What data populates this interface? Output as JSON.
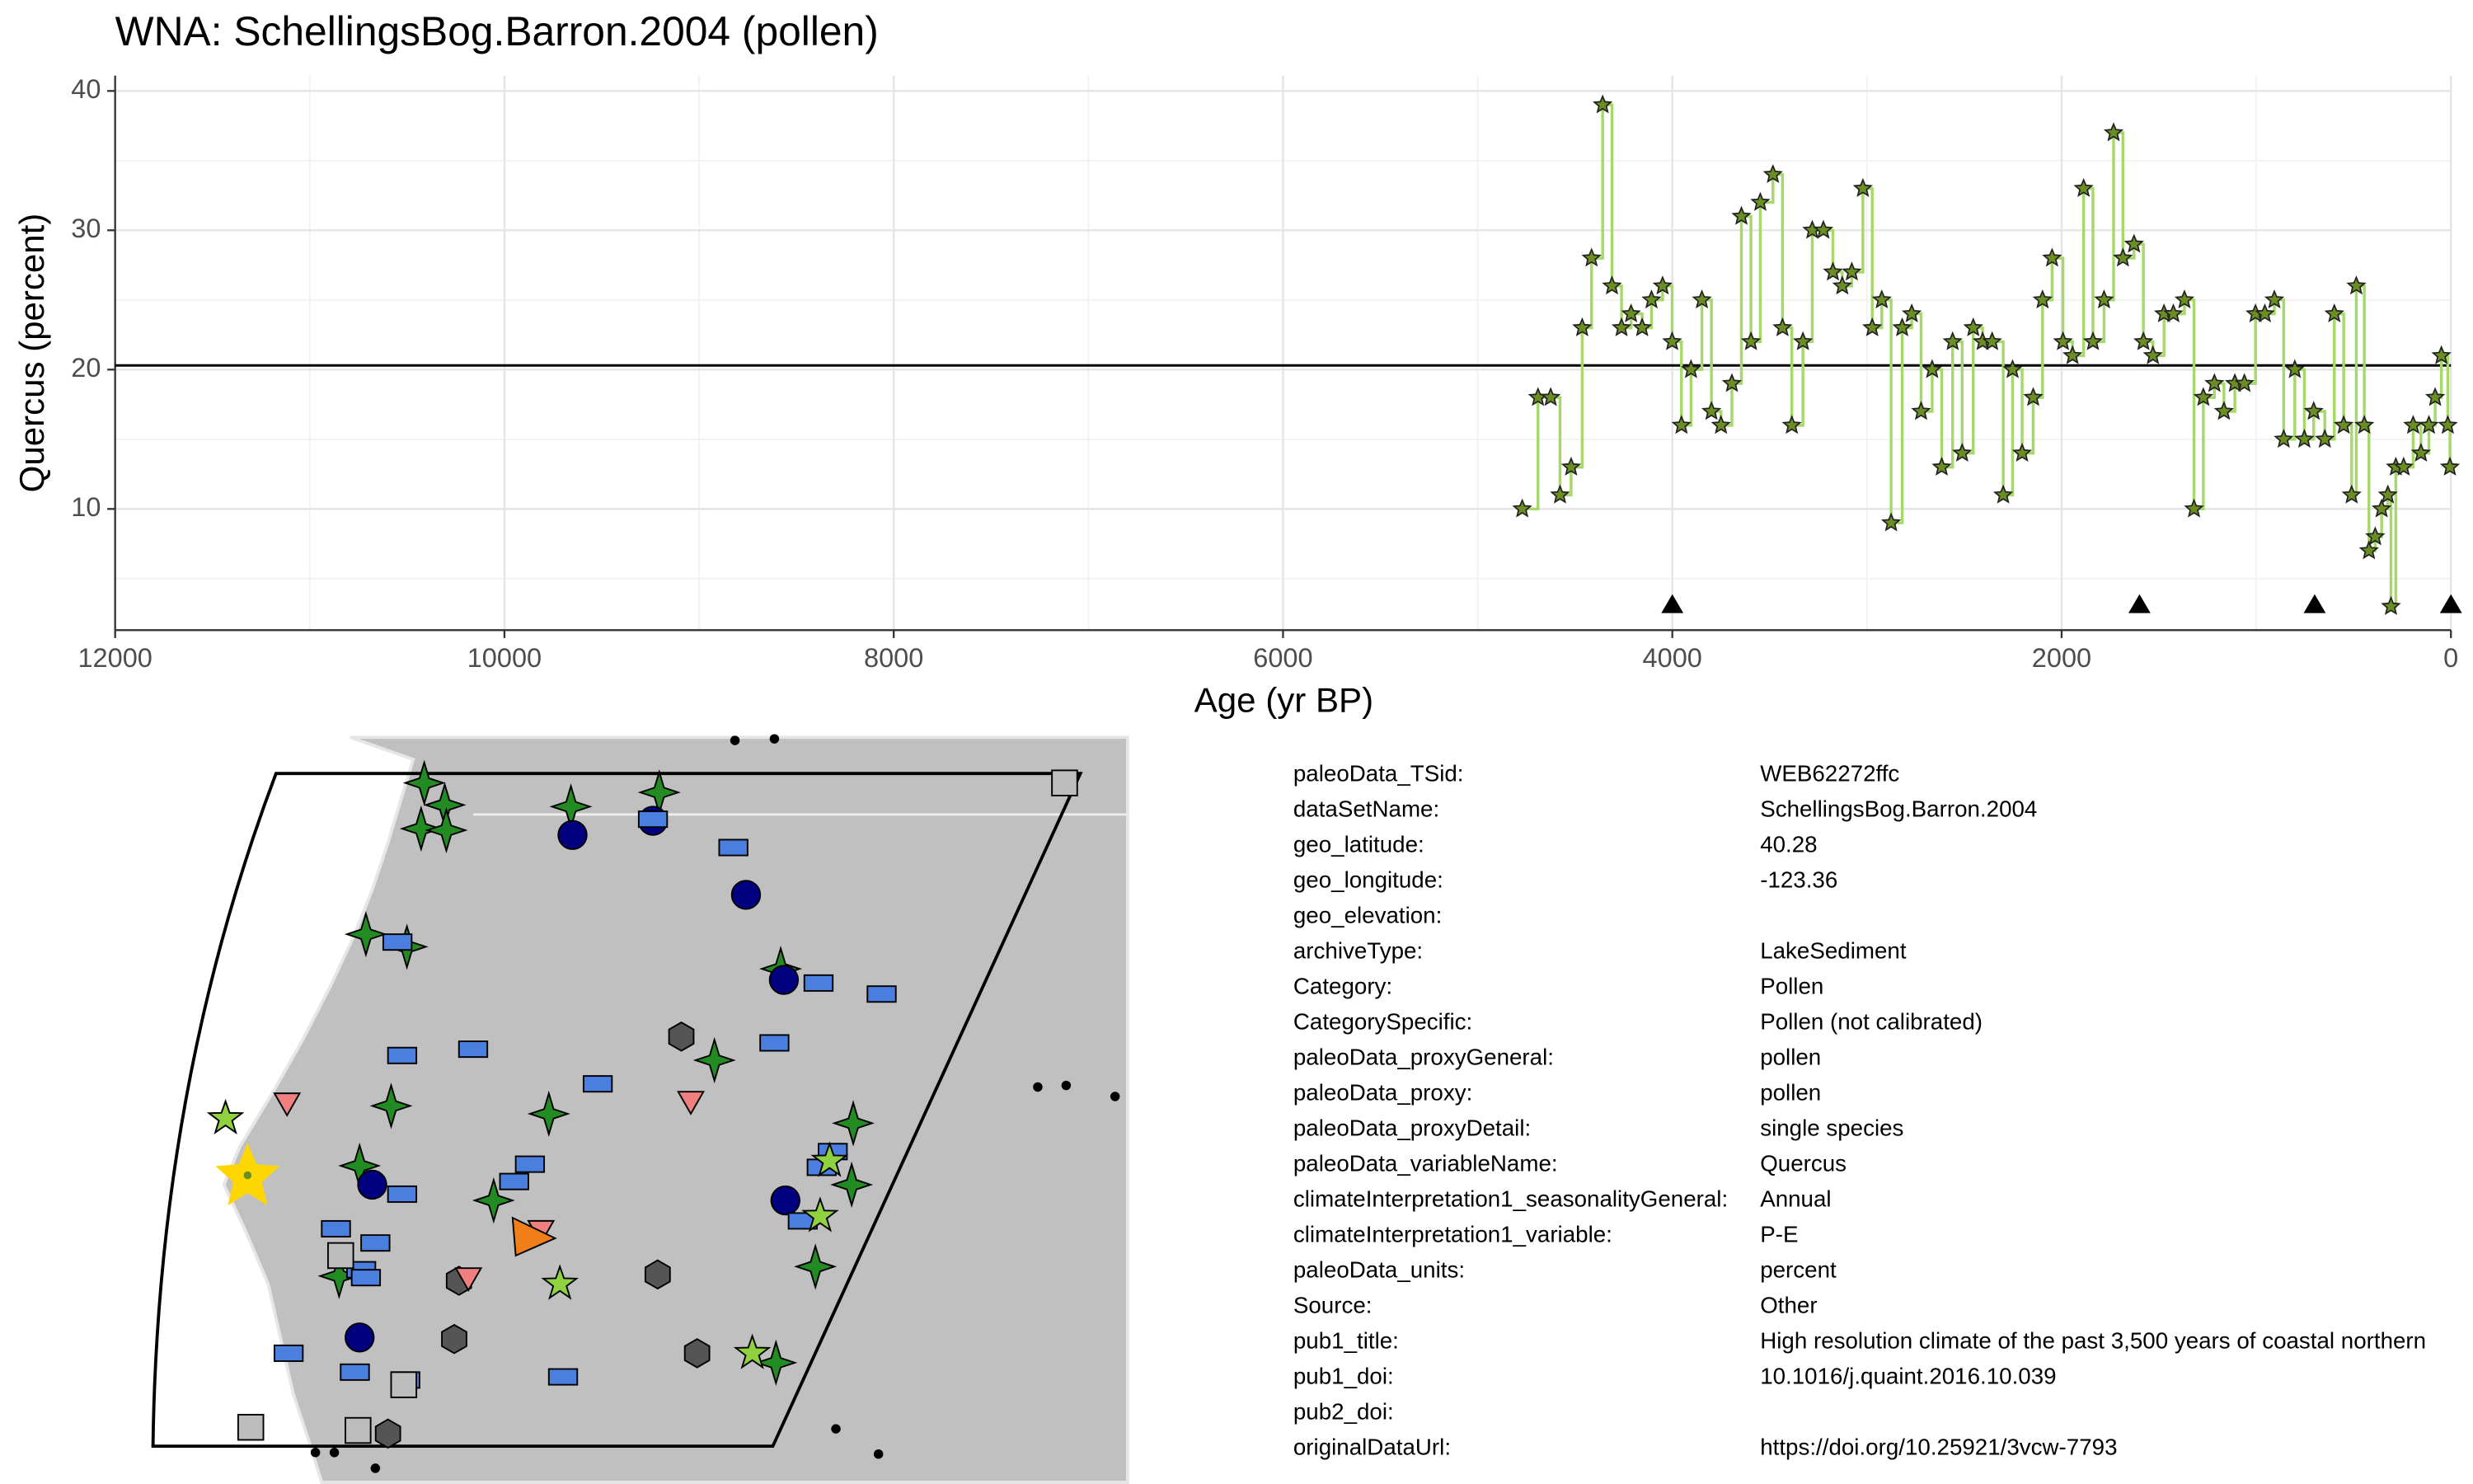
{
  "chart_data": {
    "type": "step",
    "title": "WNA: SchellingsBog.Barron.2004 (pollen)",
    "x_label": "Age (yr BP)",
    "y_label": "Quercus (percent)",
    "x": [
      4771,
      4690,
      4625,
      4577,
      4520,
      4463,
      4415,
      4358,
      4310,
      4261,
      4212,
      4155,
      4107,
      4050,
      4001,
      3953,
      3904,
      3848,
      3799,
      3750,
      3694,
      3645,
      3596,
      3548,
      3483,
      3434,
      3386,
      3329,
      3281,
      3224,
      3175,
      3127,
      3078,
      3021,
      2973,
      2924,
      2876,
      2819,
      2770,
      2722,
      2665,
      2616,
      2560,
      2511,
      2454,
      2406,
      2357,
      2300,
      2252,
      2203,
      2146,
      2098,
      2049,
      1993,
      1944,
      1887,
      1839,
      1782,
      1733,
      1685,
      1628,
      1580,
      1531,
      1474,
      1426,
      1369,
      1320,
      1272,
      1215,
      1166,
      1110,
      1061,
      1004,
      956,
      907,
      859,
      802,
      753,
      705,
      648,
      599,
      551,
      510,
      486,
      445,
      421,
      389,
      356,
      324,
      308,
      283,
      243,
      194,
      154,
      113,
      81,
      49,
      16,
      5
    ],
    "values": [
      10,
      18,
      18,
      11,
      13,
      23,
      28,
      39,
      26,
      23,
      24,
      23,
      25,
      26,
      22,
      16,
      20,
      25,
      17,
      16,
      19,
      31,
      22,
      32,
      34,
      23,
      16,
      22,
      30,
      30,
      27,
      26,
      27,
      33,
      23,
      25,
      9,
      23,
      24,
      17,
      20,
      13,
      22,
      14,
      23,
      22,
      22,
      11,
      20,
      14,
      18,
      25,
      28,
      22,
      21,
      33,
      22,
      25,
      37,
      28,
      29,
      22,
      21,
      24,
      24,
      25,
      10,
      18,
      19,
      17,
      19,
      19,
      24,
      24,
      25,
      15,
      20,
      15,
      17,
      15,
      24,
      16,
      11,
      26,
      16,
      7,
      8,
      10,
      11,
      3,
      13,
      13,
      16,
      14,
      16,
      18,
      21,
      16,
      13
    ],
    "line_color": "#a6d96a",
    "marker_color": "#6b8e23",
    "mean_line": 20.3,
    "chron_ages": [
      4000,
      1600,
      700,
      0
    ],
    "chron_level": 3.2,
    "xlim": [
      12000,
      0
    ],
    "xticks": [
      12000,
      10000,
      8000,
      6000,
      4000,
      2000,
      0
    ],
    "xminor": [
      11000,
      9000,
      7000,
      5000,
      3000,
      1000
    ],
    "ylim": [
      1.3,
      41.1
    ],
    "yticks": [
      10,
      20,
      30,
      40
    ],
    "yminor": [
      5,
      15,
      25,
      35
    ],
    "grid": true
  },
  "metadata": {
    "rows": [
      {
        "key": "paleoData_TSid:",
        "value": "WEB62272ffc"
      },
      {
        "key": "dataSetName:",
        "value": "SchellingsBog.Barron.2004"
      },
      {
        "key": "geo_latitude:",
        "value": "40.28"
      },
      {
        "key": "geo_longitude:",
        "value": "-123.36"
      },
      {
        "key": "geo_elevation:"
      },
      {
        "key": "archiveType:",
        "value": "LakeSediment"
      },
      {
        "key": "Category:",
        "value": "Pollen"
      },
      {
        "key": "CategorySpecific:",
        "value": "Pollen (not calibrated)"
      },
      {
        "key": "paleoData_proxyGeneral:",
        "value": "pollen"
      },
      {
        "key": "paleoData_proxy:",
        "value": "pollen"
      },
      {
        "key": "paleoData_proxyDetail:",
        "value": "single species"
      },
      {
        "key": "paleoData_variableName:",
        "value": "Quercus"
      },
      {
        "key": "climateInterpretation1_seasonalityGeneral:",
        "value": "Annual"
      },
      {
        "key": "climateInterpretation1_variable:",
        "value": "P-E"
      },
      {
        "key": "paleoData_units:",
        "value": "percent"
      },
      {
        "key": "Source:",
        "value": "Other"
      },
      {
        "key": "pub1_title:",
        "value": "High resolution climate of the past 3,500 years of coastal northern"
      },
      {
        "key": "pub1_doi:",
        "value": "10.1016/j.quaint.2016.10.039"
      },
      {
        "key": "pub2_doi:"
      },
      {
        "key": "originalDataUrl:",
        "value": "https://doi.org/10.25921/3vcw-7793"
      }
    ]
  }
}
